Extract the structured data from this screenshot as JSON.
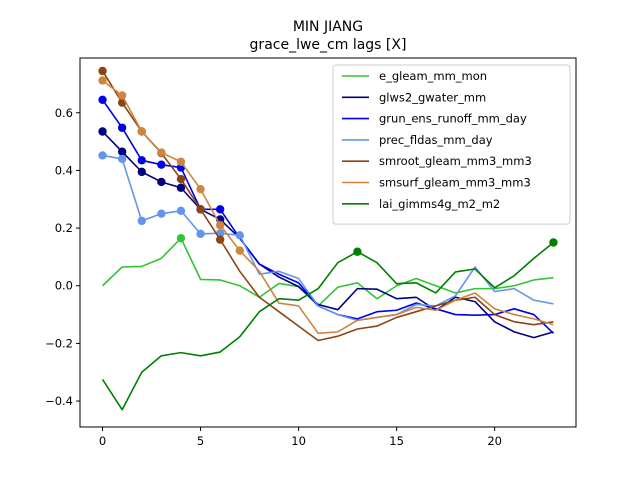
{
  "chart_data": {
    "type": "line",
    "title": "MIN JIANG",
    "subtitle": "grace_lwe_cm lags [X]",
    "xlabel": "",
    "ylabel": "",
    "xlim": [
      -1.15,
      24.15
    ],
    "ylim": [
      -0.49,
      0.79
    ],
    "xticks": [
      0,
      5,
      10,
      15,
      20
    ],
    "yticks": [
      -0.4,
      -0.2,
      0.0,
      0.2,
      0.4,
      0.6
    ],
    "ytick_labels": [
      "−0.4",
      "−0.2",
      "0.0",
      "0.2",
      "0.4",
      "0.6"
    ],
    "grid": false,
    "legend_position": "top-right",
    "x": [
      0,
      1,
      2,
      3,
      4,
      5,
      6,
      7,
      8,
      9,
      10,
      11,
      12,
      13,
      14,
      15,
      16,
      17,
      18,
      19,
      20,
      21,
      22,
      23
    ],
    "series": [
      {
        "name": "e_gleam_mm_mon",
        "color": "#33c433",
        "values": [
          0.0,
          0.065,
          0.067,
          0.095,
          0.165,
          0.022,
          0.02,
          0.0,
          -0.04,
          0.008,
          -0.003,
          -0.07,
          -0.005,
          0.01,
          -0.045,
          0.0,
          0.025,
          0.0,
          -0.025,
          -0.01,
          -0.01,
          0.0,
          0.02,
          0.028
        ],
        "markers": [
          4
        ]
      },
      {
        "name": "glws2_gwater_mm",
        "color": "#000080",
        "values": [
          0.535,
          0.465,
          0.395,
          0.36,
          0.34,
          0.265,
          0.23,
          0.165,
          0.075,
          0.03,
          -0.003,
          -0.065,
          -0.083,
          -0.01,
          -0.012,
          -0.045,
          -0.04,
          -0.085,
          -0.04,
          -0.055,
          -0.125,
          -0.16,
          -0.18,
          -0.16
        ],
        "markers": [
          0,
          1,
          2,
          3,
          4,
          5,
          6
        ]
      },
      {
        "name": "grun_ens_runoff_mm_day",
        "color": "#0000e6",
        "values": [
          0.645,
          0.548,
          0.435,
          0.42,
          0.41,
          0.265,
          0.265,
          0.165,
          0.075,
          0.04,
          0.01,
          -0.07,
          -0.1,
          -0.115,
          -0.09,
          -0.085,
          -0.06,
          -0.08,
          -0.1,
          -0.102,
          -0.1,
          -0.08,
          -0.1,
          -0.165
        ],
        "markers": [
          0,
          1,
          2,
          3,
          4,
          5,
          6
        ]
      },
      {
        "name": "prec_fldas_mm_day",
        "color": "#6495ed",
        "values": [
          0.452,
          0.44,
          0.225,
          0.25,
          0.26,
          0.18,
          0.182,
          0.175,
          0.04,
          0.05,
          0.025,
          -0.07,
          -0.1,
          -0.12,
          -0.11,
          -0.1,
          -0.065,
          -0.07,
          -0.035,
          0.065,
          -0.02,
          -0.01,
          -0.05,
          -0.063
        ],
        "markers": [
          0,
          1,
          2,
          3,
          4,
          5,
          6,
          7
        ]
      },
      {
        "name": "smroot_gleam_mm3_mm3",
        "color": "#8b4513",
        "values": [
          0.745,
          0.635,
          0.535,
          0.46,
          0.37,
          0.265,
          0.16,
          0.05,
          -0.04,
          -0.09,
          -0.14,
          -0.19,
          -0.175,
          -0.15,
          -0.14,
          -0.11,
          -0.09,
          -0.07,
          -0.05,
          -0.04,
          -0.1,
          -0.125,
          -0.135,
          -0.125
        ],
        "markers": [
          0,
          1,
          2,
          3,
          4,
          5,
          6
        ]
      },
      {
        "name": "smsurf_gleam_mm3_mm3",
        "color": "#cd853f",
        "values": [
          0.712,
          0.66,
          0.535,
          0.462,
          0.43,
          0.335,
          0.21,
          0.122,
          0.05,
          -0.06,
          -0.07,
          -0.165,
          -0.16,
          -0.12,
          -0.11,
          -0.1,
          -0.075,
          -0.085,
          -0.05,
          -0.025,
          -0.08,
          -0.1,
          -0.115,
          -0.135
        ],
        "markers": [
          0,
          1,
          2,
          3,
          4,
          5,
          6,
          7
        ]
      },
      {
        "name": "lai_gimms4g_m2_m2",
        "color": "#008000",
        "values": [
          -0.325,
          -0.43,
          -0.3,
          -0.243,
          -0.232,
          -0.243,
          -0.23,
          -0.177,
          -0.09,
          -0.045,
          -0.05,
          -0.01,
          0.08,
          0.118,
          0.08,
          0.007,
          0.01,
          -0.025,
          0.048,
          0.058,
          -0.007,
          0.035,
          0.095,
          0.15
        ],
        "markers": [
          13,
          23
        ]
      }
    ]
  }
}
